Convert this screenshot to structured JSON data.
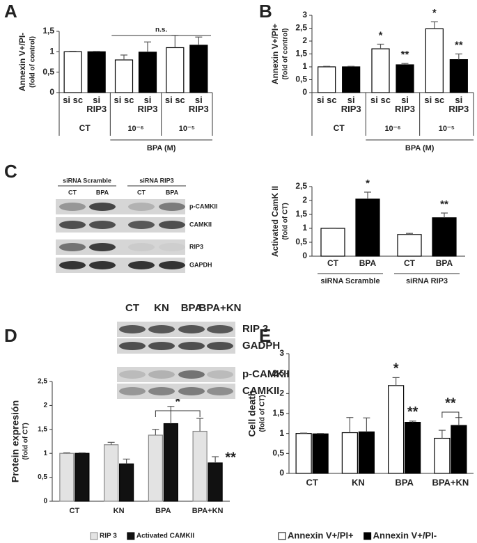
{
  "chart_data": [
    {
      "type": "bar",
      "panel": "A",
      "ylabel": "Annexin V+/PI-",
      "ylabel_note": "(fold of control)",
      "categories": [
        "CT",
        "10⁻⁶",
        "10⁻⁵"
      ],
      "group_axis_label": "BPA (M)",
      "series": [
        {
          "name": "si sc",
          "color": "#ffffff",
          "values": [
            1.0,
            0.8,
            1.1
          ],
          "errors": [
            0.01,
            0.12,
            0.3
          ]
        },
        {
          "name": "si RIP3",
          "color": "#000000",
          "values": [
            1.0,
            0.99,
            1.16
          ],
          "errors": [
            0.01,
            0.25,
            0.2
          ]
        }
      ],
      "bracket_label": "n.s.",
      "ylim": [
        0,
        1.5
      ],
      "yticks": [
        0,
        {
          "value": 0.5,
          "label": "0,5"
        },
        1,
        {
          "value": 1.5,
          "label": "1,5"
        }
      ]
    },
    {
      "type": "bar",
      "panel": "B",
      "ylabel": "Annexin V+/PI+",
      "ylabel_note": "(fold of control)",
      "categories": [
        "CT",
        "10⁻⁶",
        "10⁻⁵"
      ],
      "group_axis_label": "BPA (M)",
      "series": [
        {
          "name": "si sc",
          "color": "#ffffff",
          "values": [
            1.0,
            1.7,
            2.48
          ],
          "errors": [
            0.02,
            0.18,
            0.27
          ],
          "significance": [
            null,
            "*",
            "*"
          ]
        },
        {
          "name": "si RIP3",
          "color": "#000000",
          "values": [
            1.0,
            1.08,
            1.28
          ],
          "errors": [
            0.02,
            0.05,
            0.22
          ],
          "significance": [
            null,
            "**",
            "**"
          ]
        }
      ],
      "ylim": [
        0,
        3
      ],
      "yticks": [
        0,
        {
          "value": 0.5,
          "label": "0,5"
        },
        1,
        {
          "value": 1.5,
          "label": "1,5"
        },
        2,
        {
          "value": 2.5,
          "label": "2,5"
        },
        3
      ]
    },
    {
      "type": "bar",
      "panel": "C",
      "ylabel": "Activated CamK II",
      "ylabel_note": "(fold of CT)",
      "categories": [
        "siRNA Scramble",
        "siRNA RIP3"
      ],
      "series": [
        {
          "name": "CT",
          "color": "#ffffff",
          "values": [
            1.0,
            0.78
          ],
          "errors": [
            0.01,
            0.04
          ]
        },
        {
          "name": "BPA",
          "color": "#000000",
          "values": [
            2.05,
            1.38
          ],
          "errors": [
            0.25,
            0.17
          ],
          "significance": [
            "*",
            "**"
          ]
        }
      ],
      "ylim": [
        0,
        2.5
      ],
      "yticks": [
        0,
        {
          "value": 0.5,
          "label": "0,5"
        },
        1,
        {
          "value": 1.5,
          "label": "1,5"
        },
        2,
        {
          "value": 2.5,
          "label": "2,5"
        }
      ]
    },
    {
      "type": "bar",
      "panel": "D",
      "ylabel": "Protein expresión",
      "ylabel_note": "(fold of CT)",
      "categories": [
        "CT",
        "KN",
        "BPA",
        "BPA+KN"
      ],
      "series": [
        {
          "name": "RIP 3",
          "color": "#e3e3e3",
          "values": [
            1.0,
            1.18,
            1.38,
            1.46
          ],
          "errors": [
            0.01,
            0.05,
            0.12,
            0.27
          ]
        },
        {
          "name": "Activated CAMKII",
          "color": "#111111",
          "values": [
            1.0,
            0.78,
            1.62,
            0.8
          ],
          "errors": [
            0.01,
            0.1,
            0.36,
            0.13
          ],
          "significance": [
            null,
            null,
            null,
            "**"
          ]
        }
      ],
      "bracket_label": "*",
      "legend": "bottom",
      "ylim": [
        0,
        2.5
      ],
      "yticks": [
        0,
        {
          "value": 0.5,
          "label": "0,5"
        },
        1,
        {
          "value": 1.5,
          "label": "1,5"
        },
        2,
        {
          "value": 2.5,
          "label": "2,5"
        }
      ]
    },
    {
      "type": "bar",
      "panel": "E",
      "ylabel": "Cell death",
      "ylabel_note": "(fold of CT)",
      "categories": [
        "CT",
        "KN",
        "BPA",
        "BPA+KN"
      ],
      "series": [
        {
          "name": "Annexin V+/PI+",
          "color": "#ffffff",
          "values": [
            1.0,
            1.02,
            2.2,
            0.88
          ],
          "errors": [
            0.01,
            0.38,
            0.2,
            0.2
          ],
          "significance": [
            null,
            null,
            "*",
            null
          ]
        },
        {
          "name": "Annexin V+/PI-",
          "color": "#000000",
          "values": [
            0.99,
            1.04,
            1.28,
            1.2
          ],
          "errors": [
            0.01,
            0.35,
            0.03,
            0.2
          ],
          "significance": [
            null,
            null,
            "**",
            null
          ]
        }
      ],
      "bracket_label": "**",
      "legend": "bottom",
      "ylim": [
        0,
        3
      ],
      "yticks": [
        0,
        {
          "value": 0.5,
          "label": "0,5"
        },
        1,
        {
          "value": 1.5,
          "label": "1,5"
        },
        2,
        {
          "value": 2.5,
          "label": "2,5"
        },
        3
      ]
    }
  ],
  "blots": [
    {
      "groups": [
        "siRNA Scramble",
        "siRNA RIP3"
      ],
      "lanes": [
        "CT",
        "BPA",
        "CT",
        "BPA"
      ],
      "bands": [
        "p-CAMKII",
        "CAMKII",
        "RIP3",
        "GAPDH"
      ]
    },
    {
      "lanes": [
        "CT",
        "KN",
        "BPA",
        "BPA+KN"
      ],
      "bands": [
        "RIP 3",
        "GADPH",
        "p-CAMKII",
        "CAMKII"
      ]
    }
  ]
}
